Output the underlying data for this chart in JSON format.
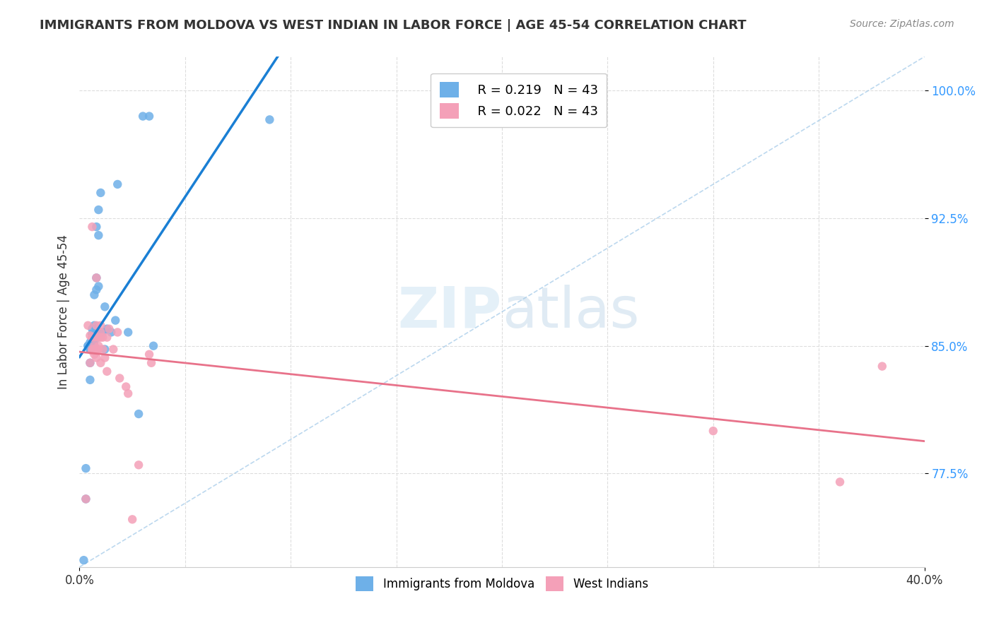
{
  "title": "IMMIGRANTS FROM MOLDOVA VS WEST INDIAN IN LABOR FORCE | AGE 45-54 CORRELATION CHART",
  "source": "Source: ZipAtlas.com",
  "ylabel": "In Labor Force | Age 45-54",
  "ylabel_ticks": [
    77.5,
    85.0,
    92.5,
    100.0
  ],
  "xlim": [
    0.0,
    0.4
  ],
  "ylim": [
    0.72,
    1.02
  ],
  "legend1_r": "0.219",
  "legend1_n": "43",
  "legend2_r": "0.022",
  "legend2_n": "43",
  "color_moldova": "#6eb0e8",
  "color_westindian": "#f4a0b8",
  "color_line_moldova": "#1a7fd4",
  "color_line_westindian": "#e8728a",
  "color_diag": "#a0c8e8",
  "moldova_x": [
    0.002,
    0.003,
    0.003,
    0.004,
    0.004,
    0.005,
    0.005,
    0.005,
    0.005,
    0.005,
    0.006,
    0.006,
    0.006,
    0.006,
    0.006,
    0.006,
    0.007,
    0.007,
    0.007,
    0.007,
    0.007,
    0.008,
    0.008,
    0.008,
    0.008,
    0.009,
    0.009,
    0.009,
    0.01,
    0.01,
    0.011,
    0.012,
    0.012,
    0.013,
    0.015,
    0.017,
    0.018,
    0.023,
    0.028,
    0.03,
    0.033,
    0.035,
    0.09
  ],
  "moldova_y": [
    0.724,
    0.76,
    0.778,
    0.85,
    0.85,
    0.83,
    0.84,
    0.848,
    0.848,
    0.852,
    0.85,
    0.852,
    0.852,
    0.854,
    0.857,
    0.86,
    0.85,
    0.853,
    0.855,
    0.862,
    0.88,
    0.86,
    0.883,
    0.89,
    0.92,
    0.885,
    0.915,
    0.93,
    0.858,
    0.94,
    0.858,
    0.848,
    0.873,
    0.86,
    0.858,
    0.865,
    0.945,
    0.858,
    0.81,
    0.985,
    0.985,
    0.85,
    0.983
  ],
  "westindian_x": [
    0.003,
    0.004,
    0.005,
    0.005,
    0.006,
    0.006,
    0.006,
    0.006,
    0.007,
    0.007,
    0.007,
    0.007,
    0.008,
    0.008,
    0.008,
    0.008,
    0.008,
    0.008,
    0.009,
    0.009,
    0.009,
    0.01,
    0.01,
    0.01,
    0.01,
    0.011,
    0.011,
    0.012,
    0.013,
    0.013,
    0.014,
    0.016,
    0.018,
    0.019,
    0.022,
    0.023,
    0.025,
    0.028,
    0.033,
    0.034,
    0.3,
    0.36,
    0.38
  ],
  "westindian_y": [
    0.76,
    0.862,
    0.84,
    0.856,
    0.847,
    0.848,
    0.855,
    0.92,
    0.845,
    0.848,
    0.85,
    0.855,
    0.843,
    0.847,
    0.848,
    0.855,
    0.862,
    0.89,
    0.848,
    0.85,
    0.855,
    0.84,
    0.855,
    0.858,
    0.862,
    0.848,
    0.855,
    0.843,
    0.835,
    0.855,
    0.86,
    0.848,
    0.858,
    0.831,
    0.826,
    0.822,
    0.748,
    0.78,
    0.845,
    0.84,
    0.8,
    0.77,
    0.838
  ],
  "watermark_zip": "ZIP",
  "watermark_atlas": "atlas",
  "background_color": "#ffffff",
  "grid_color": "#dddddd",
  "legend_bottom_labels": [
    "Immigrants from Moldova",
    "West Indians"
  ]
}
